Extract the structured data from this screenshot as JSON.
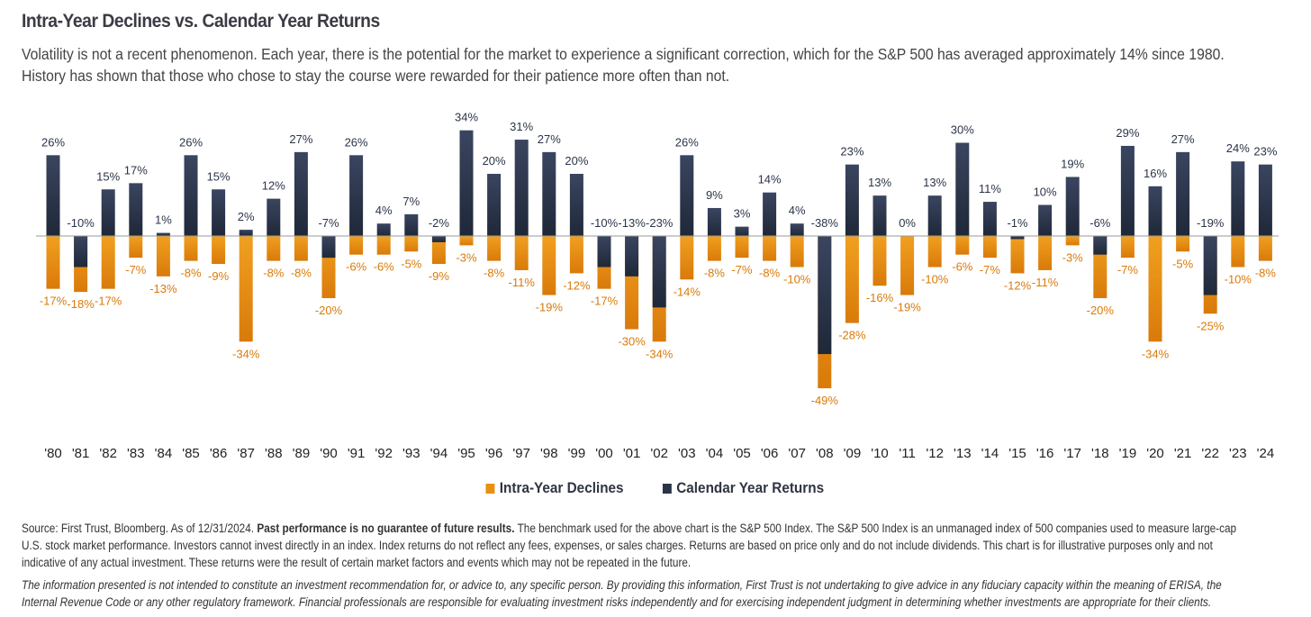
{
  "header": {
    "title": "Intra-Year Declines vs. Calendar Year Returns",
    "subtitle": "Volatility is not a recent phenomenon. Each year, there is the potential for the market to experience a significant correction, which for the S&P 500 has averaged approximately 14% since 1980. History has shown that those who chose to stay the course were rewarded for their patience more often than not."
  },
  "chart_data": {
    "type": "bar",
    "categories": [
      "'80",
      "'81",
      "'82",
      "'83",
      "'84",
      "'85",
      "'86",
      "'87",
      "'88",
      "'89",
      "'90",
      "'91",
      "'92",
      "'93",
      "'94",
      "'95",
      "'96",
      "'97",
      "'98",
      "'99",
      "'00",
      "'01",
      "'02",
      "'03",
      "'04",
      "'05",
      "'06",
      "'07",
      "'08",
      "'09",
      "'10",
      "'11",
      "'12",
      "'13",
      "'14",
      "'15",
      "'16",
      "'17",
      "'18",
      "'19",
      "'20",
      "'21",
      "'22",
      "'23",
      "'24"
    ],
    "series": [
      {
        "name": "Intra-Year Declines",
        "color": "#e8900f",
        "values": [
          -17,
          -18,
          -17,
          -7,
          -13,
          -8,
          -9,
          -34,
          -8,
          -8,
          -20,
          -6,
          -6,
          -5,
          -9,
          -3,
          -8,
          -11,
          -19,
          -12,
          -17,
          -30,
          -34,
          -14,
          -8,
          -7,
          -8,
          -10,
          -49,
          -28,
          -16,
          -19,
          -10,
          -6,
          -7,
          -12,
          -11,
          -3,
          -20,
          -7,
          -34,
          -5,
          -25,
          -10,
          -8
        ]
      },
      {
        "name": "Calendar Year Returns",
        "color": "#2b3548",
        "values": [
          26,
          -10,
          15,
          17,
          1,
          26,
          15,
          2,
          12,
          27,
          -7,
          26,
          4,
          7,
          -2,
          34,
          20,
          31,
          27,
          20,
          -10,
          -13,
          -23,
          26,
          9,
          3,
          14,
          4,
          -38,
          23,
          13,
          0,
          13,
          30,
          11,
          -1,
          10,
          19,
          -6,
          29,
          16,
          27,
          -19,
          24,
          23
        ]
      }
    ],
    "value_suffix": "%",
    "legend_position": "bottom-center",
    "grid": false
  },
  "legend": {
    "items": [
      {
        "label": "Intra-Year Declines",
        "color": "#e8900f"
      },
      {
        "label": "Calendar Year Returns",
        "color": "#2b3548"
      }
    ]
  },
  "footer": {
    "source_prefix": "Source: First Trust, Bloomberg. As of 12/31/2024. ",
    "source_bold": "Past performance is no guarantee of future results.",
    "source_rest": " The benchmark used for the above chart is the S&P 500 Index. The S&P 500 Index is an unmanaged index of 500 companies used to measure large-cap U.S. stock market performance. Investors cannot invest directly in an index. Index returns do not reflect any fees, expenses, or sales charges. Returns are based on price only and do not include dividends. This chart is for illustrative purposes only and not indicative of any actual investment. These returns were the result of certain market factors and events which may not be repeated in the future.",
    "disclaimer": "The information presented is not intended to constitute an investment recommendation for, or advice to, any specific person. By providing this information, First Trust is not undertaking to give advice in any fiduciary capacity within the meaning of ERISA, the Internal Revenue Code or any other regulatory framework. Financial professionals are responsible for evaluating investment risks independently and for exercising independent judgment in determining whether investments are appropriate for their clients."
  }
}
